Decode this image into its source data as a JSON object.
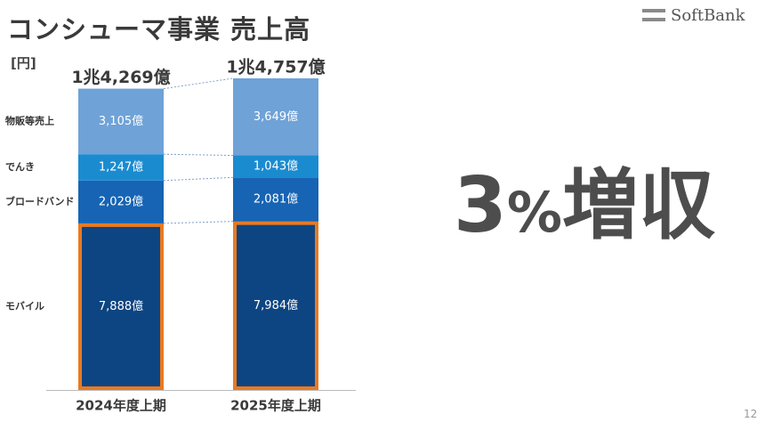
{
  "header": {
    "title": "コンシューマ事業 売上高",
    "logo_text": "SoftBank",
    "unit": "[円]"
  },
  "highlight": {
    "value": "3",
    "unit": "%",
    "label": "増収"
  },
  "page_number": "12",
  "colors": {
    "mobile": "#0d4582",
    "broadband": "#1764b4",
    "denki": "#1b8bd0",
    "merch": "#6fa2d7",
    "highlight_border": "#e87a22",
    "connector": "#7ea2c8"
  },
  "chart_data": {
    "type": "bar",
    "stacked": true,
    "categories": [
      "2024年度上期",
      "2025年度上期"
    ],
    "totals": [
      "1兆4,269億",
      "1兆4,757億"
    ],
    "total_values": [
      14269,
      14757
    ],
    "series": [
      {
        "name": "モバイル",
        "values": [
          7888,
          7984
        ],
        "labels": [
          "7,888億",
          "7,984億"
        ],
        "color": "#0d4582",
        "highlighted": true
      },
      {
        "name": "ブロードバンド",
        "values": [
          2029,
          2081
        ],
        "labels": [
          "2,029億",
          "2,081億"
        ],
        "color": "#1764b4"
      },
      {
        "name": "でんき",
        "values": [
          1247,
          1043
        ],
        "labels": [
          "1,247億",
          "1,043億"
        ],
        "color": "#1b8bd0"
      },
      {
        "name": "物販等売上",
        "values": [
          3105,
          3649
        ],
        "labels": [
          "3,105億",
          "3,649億"
        ],
        "color": "#6fa2d7"
      }
    ],
    "ylabel": "[円]",
    "legend": "left"
  }
}
